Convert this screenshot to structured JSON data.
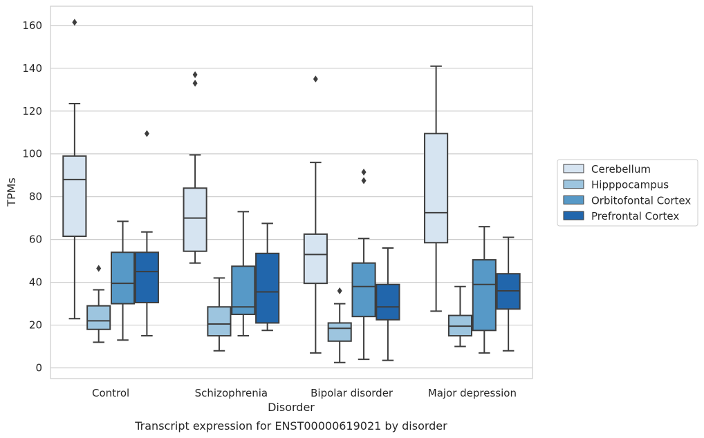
{
  "chart_data": {
    "type": "box",
    "caption": "Transcript expression for ENST00000619021 by disorder",
    "xlabel": "Disorder",
    "ylabel": "TPMs",
    "ylim": [
      -5,
      169
    ],
    "yticks": [
      0,
      20,
      40,
      60,
      80,
      100,
      120,
      140,
      160
    ],
    "grid": "horizontal",
    "legend_position": "right",
    "categories": [
      "Control",
      "Schizophrenia",
      "Bipolar disorder",
      "Major depression"
    ],
    "series": [
      {
        "name": "Cerebellum",
        "color": "#d6e4f1",
        "boxes": [
          {
            "whisker_low": 23,
            "q1": 61.5,
            "median": 88,
            "q3": 99,
            "whisker_high": 123.5,
            "outliers": [
              161.5
            ]
          },
          {
            "whisker_low": 49,
            "q1": 54.5,
            "median": 70,
            "q3": 84,
            "whisker_high": 99.5,
            "outliers": [
              137,
              133
            ]
          },
          {
            "whisker_low": 7,
            "q1": 39.5,
            "median": 53,
            "q3": 62.5,
            "whisker_high": 96,
            "outliers": [
              135
            ]
          },
          {
            "whisker_low": 26.5,
            "q1": 58.5,
            "median": 72.5,
            "q3": 109.5,
            "whisker_high": 141,
            "outliers": []
          }
        ]
      },
      {
        "name": "Hipppocampus",
        "color": "#9dc5df",
        "boxes": [
          {
            "whisker_low": 12,
            "q1": 18,
            "median": 22,
            "q3": 29,
            "whisker_high": 36.5,
            "outliers": [
              46.5
            ]
          },
          {
            "whisker_low": 8,
            "q1": 15,
            "median": 20.5,
            "q3": 28.5,
            "whisker_high": 42,
            "outliers": []
          },
          {
            "whisker_low": 2.5,
            "q1": 12.5,
            "median": 18.5,
            "q3": 21,
            "whisker_high": 30,
            "outliers": [
              36
            ]
          },
          {
            "whisker_low": 10,
            "q1": 15,
            "median": 19.5,
            "q3": 24.5,
            "whisker_high": 38,
            "outliers": []
          }
        ]
      },
      {
        "name": "Orbitofontal Cortex",
        "color": "#5799c7",
        "boxes": [
          {
            "whisker_low": 13,
            "q1": 30,
            "median": 39.5,
            "q3": 54,
            "whisker_high": 68.5,
            "outliers": []
          },
          {
            "whisker_low": 15,
            "q1": 25,
            "median": 28.5,
            "q3": 47.5,
            "whisker_high": 73,
            "outliers": []
          },
          {
            "whisker_low": 4,
            "q1": 24,
            "median": 38,
            "q3": 49,
            "whisker_high": 60.5,
            "outliers": [
              91.5,
              87.5
            ]
          },
          {
            "whisker_low": 7,
            "q1": 17.5,
            "median": 39,
            "q3": 50.5,
            "whisker_high": 66,
            "outliers": []
          }
        ]
      },
      {
        "name": "Prefrontal Cortex",
        "color": "#2166ac",
        "boxes": [
          {
            "whisker_low": 15,
            "q1": 30.5,
            "median": 45,
            "q3": 54,
            "whisker_high": 63.5,
            "outliers": [
              109.5
            ]
          },
          {
            "whisker_low": 17.5,
            "q1": 21,
            "median": 35.5,
            "q3": 53.5,
            "whisker_high": 67.5,
            "outliers": []
          },
          {
            "whisker_low": 3.5,
            "q1": 22.5,
            "median": 28.5,
            "q3": 39,
            "whisker_high": 56,
            "outliers": []
          },
          {
            "whisker_low": 8,
            "q1": 27.5,
            "median": 36,
            "q3": 44,
            "whisker_high": 61,
            "outliers": []
          }
        ]
      }
    ]
  }
}
